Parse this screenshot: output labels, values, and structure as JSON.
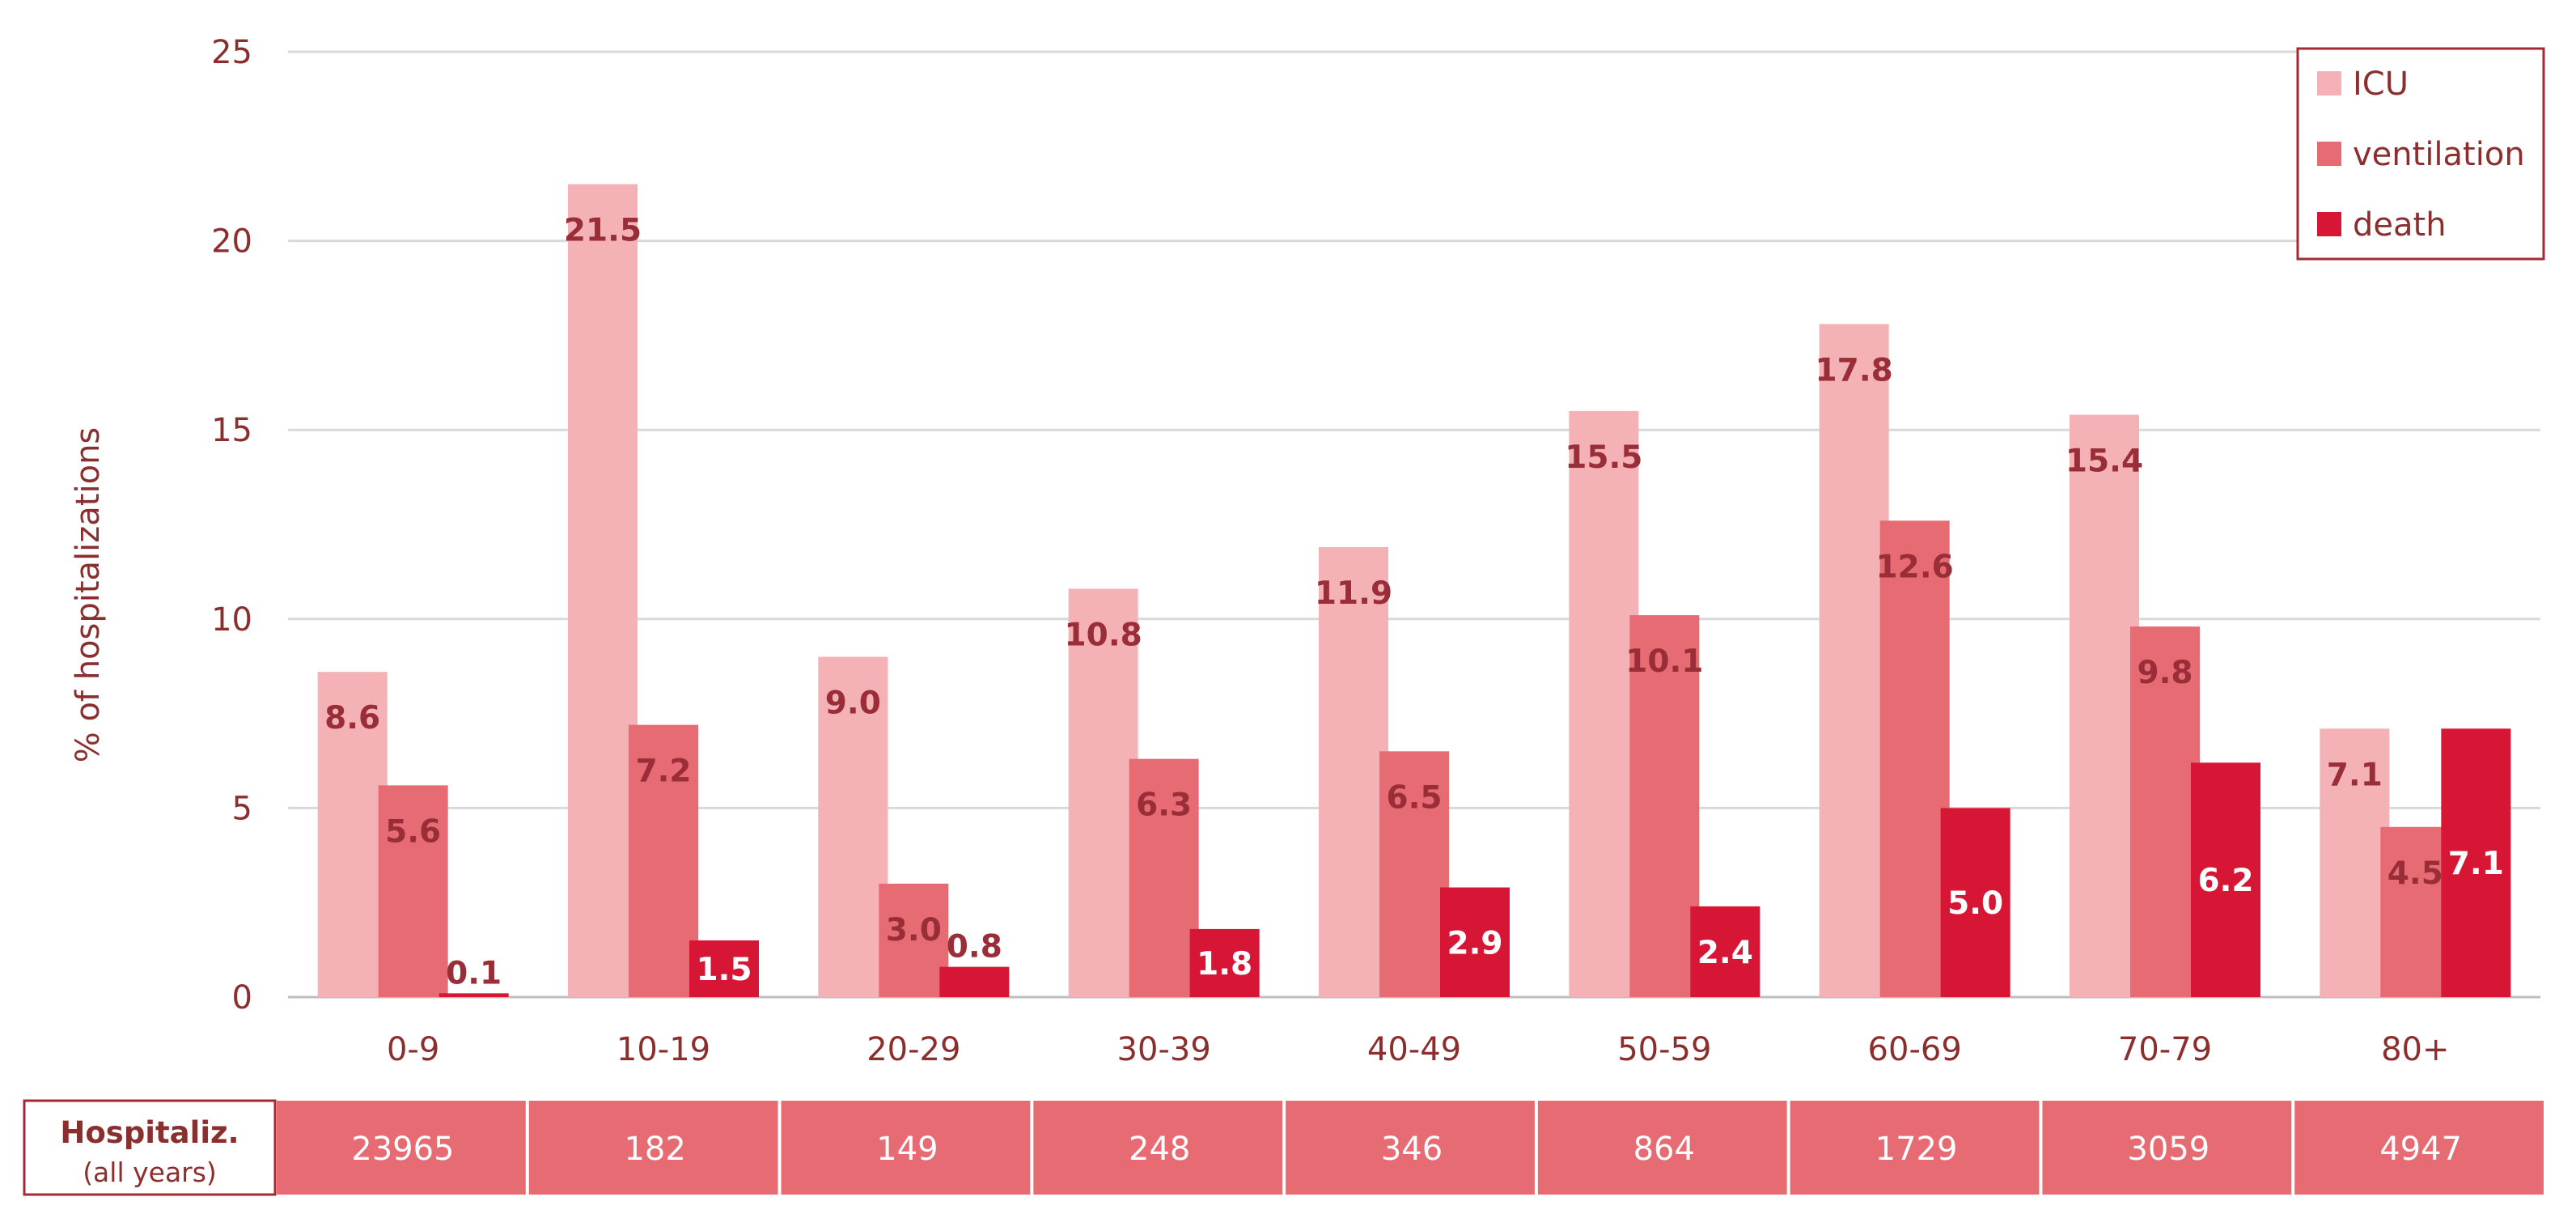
{
  "chart_data": {
    "type": "bar",
    "ylabel": "% of hospitalizations",
    "ylim": [
      0,
      25
    ],
    "yticks": [
      "0",
      "5",
      "10",
      "15",
      "20",
      "25"
    ],
    "grid": true,
    "legend_position": "top-right",
    "categories": [
      "0-9",
      "10-19",
      "20-29",
      "30-39",
      "40-49",
      "50-59",
      "60-69",
      "70-79",
      "80+"
    ],
    "series": [
      {
        "name": "ICU",
        "color": "#f4b2b7",
        "values": [
          8.6,
          21.5,
          9.0,
          10.8,
          11.9,
          15.5,
          17.8,
          15.4,
          7.1
        ],
        "labels": [
          "8.6",
          "21.5",
          "9.0",
          "10.8",
          "11.9",
          "15.5",
          "17.8",
          "15.4",
          "7.1"
        ]
      },
      {
        "name": "ventilation",
        "color": "#e66b73",
        "values": [
          5.6,
          7.2,
          3.0,
          6.3,
          6.5,
          10.1,
          12.6,
          9.8,
          4.5
        ],
        "labels": [
          "5.6",
          "7.2",
          "3.0",
          "6.3",
          "6.5",
          "10.1",
          "12.6",
          "9.8",
          "4.5"
        ]
      },
      {
        "name": "death",
        "color": "#d71535",
        "values": [
          0.1,
          1.5,
          0.8,
          1.8,
          2.9,
          2.4,
          5.0,
          6.2,
          7.1
        ],
        "labels": [
          "0.1",
          "1.5",
          "0.8",
          "1.8",
          "2.9",
          "2.4",
          "5.0",
          "6.2",
          "7.1"
        ]
      }
    ],
    "table": {
      "header_line1": "Hospitaliz.",
      "header_line2": "(all years)",
      "values": [
        "23965",
        "182",
        "149",
        "248",
        "346",
        "864",
        "1729",
        "3059",
        "4947"
      ],
      "cell_color": "#e66b73"
    }
  }
}
